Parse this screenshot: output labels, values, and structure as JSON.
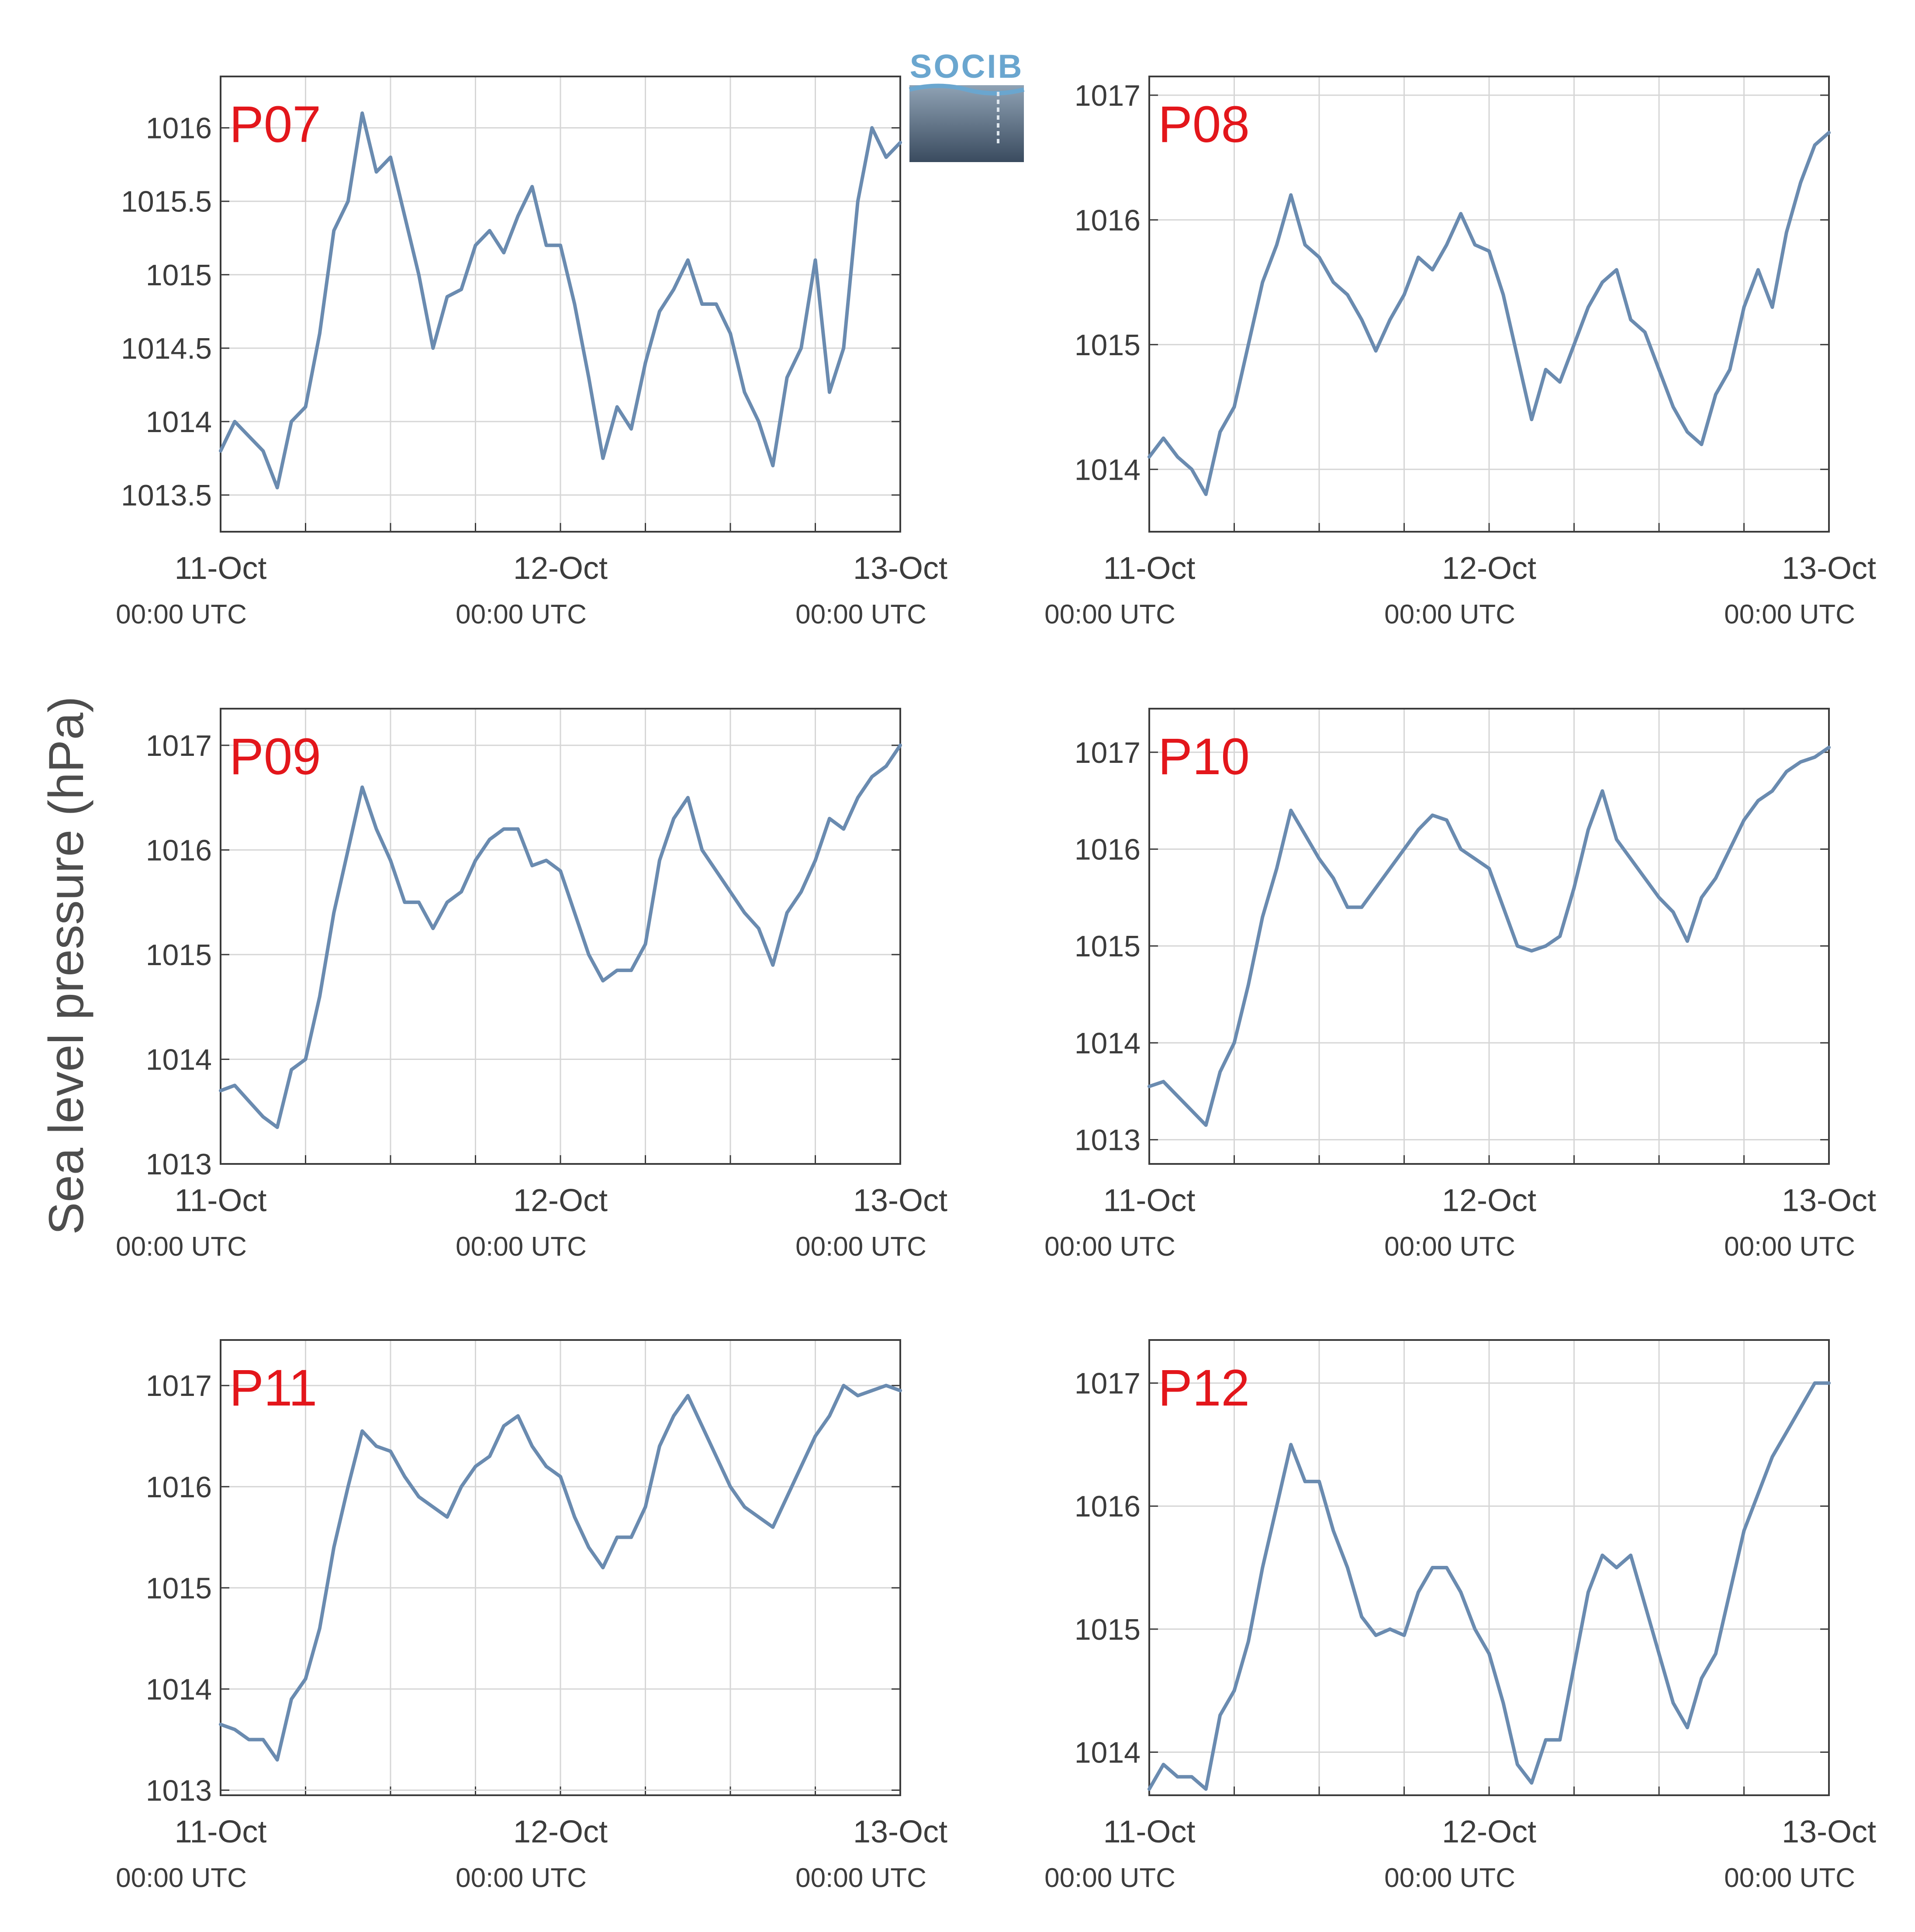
{
  "figure": {
    "ylabel": "Sea level pressure (hPa)",
    "logo_text": "SOCIB"
  },
  "colors": {
    "line": "#6a8bb0",
    "station_label": "#e3161b",
    "grid": "#d6d6d6",
    "axis": "#3c3c3c",
    "logo_text": "#6aa6cf"
  },
  "chart_data": [
    {
      "type": "line",
      "title": "P07",
      "ylabel": "Sea level pressure (hPa)",
      "xlim": [
        "2023-10-11 00:00",
        "2023-10-13 00:00"
      ],
      "ylim": [
        1013.25,
        1016.35
      ],
      "yticks": [
        "1013.5",
        "1014",
        "1014.5",
        "1015",
        "1015.5",
        "1016"
      ],
      "xticks": [
        {
          "date": "11-Oct",
          "time": "00:00 UTC"
        },
        {
          "date": "12-Oct",
          "time": "00:00 UTC"
        },
        {
          "date": "13-Oct",
          "time": "00:00 UTC"
        }
      ],
      "grid": true,
      "series": [
        {
          "x_hours": [
            0,
            1,
            2,
            3,
            4,
            5,
            6,
            7,
            8,
            9,
            10,
            11,
            12,
            13,
            14,
            15,
            16,
            17,
            18,
            19,
            20,
            21,
            22,
            23,
            24,
            25,
            26,
            27,
            28,
            29,
            30,
            31,
            32,
            33,
            34,
            35,
            36,
            37,
            38,
            39,
            40,
            41,
            42,
            43,
            44,
            45,
            46,
            47,
            48
          ],
          "values": [
            1013.8,
            1014.0,
            1013.9,
            1013.8,
            1013.55,
            1014.0,
            1014.1,
            1014.6,
            1015.3,
            1015.5,
            1016.1,
            1015.7,
            1015.8,
            1015.4,
            1015.0,
            1014.5,
            1014.85,
            1014.9,
            1015.2,
            1015.3,
            1015.15,
            1015.4,
            1015.6,
            1015.2,
            1015.2,
            1014.8,
            1014.3,
            1013.75,
            1014.1,
            1013.95,
            1014.4,
            1014.75,
            1014.9,
            1015.1,
            1014.8,
            1014.8,
            1014.6,
            1014.2,
            1014.0,
            1013.7,
            1014.3,
            1014.5,
            1015.1,
            1014.2,
            1014.5,
            1015.5,
            1016.0,
            1015.8,
            1015.9
          ]
        }
      ]
    },
    {
      "type": "line",
      "title": "P08",
      "ylabel": "Sea level pressure (hPa)",
      "xlim": [
        "2023-10-11 00:00",
        "2023-10-13 00:00"
      ],
      "ylim": [
        1013.5,
        1017.15
      ],
      "yticks": [
        "1014",
        "1015",
        "1016",
        "1017"
      ],
      "xticks": [
        {
          "date": "11-Oct",
          "time": "00:00 UTC"
        },
        {
          "date": "12-Oct",
          "time": "00:00 UTC"
        },
        {
          "date": "13-Oct",
          "time": "00:00 UTC"
        }
      ],
      "grid": true,
      "series": [
        {
          "x_hours": [
            0,
            1,
            2,
            3,
            4,
            5,
            6,
            7,
            8,
            9,
            10,
            11,
            12,
            13,
            14,
            15,
            16,
            17,
            18,
            19,
            20,
            21,
            22,
            23,
            24,
            25,
            26,
            27,
            28,
            29,
            30,
            31,
            32,
            33,
            34,
            35,
            36,
            37,
            38,
            39,
            40,
            41,
            42,
            43,
            44,
            45,
            46,
            47,
            48
          ],
          "values": [
            1014.1,
            1014.25,
            1014.1,
            1014.0,
            1013.8,
            1014.3,
            1014.5,
            1015.0,
            1015.5,
            1015.8,
            1016.2,
            1015.8,
            1015.7,
            1015.5,
            1015.4,
            1015.2,
            1014.95,
            1015.2,
            1015.4,
            1015.7,
            1015.6,
            1015.8,
            1016.05,
            1015.8,
            1015.75,
            1015.4,
            1014.9,
            1014.4,
            1014.8,
            1014.7,
            1015.0,
            1015.3,
            1015.5,
            1015.6,
            1015.2,
            1015.1,
            1014.8,
            1014.5,
            1014.3,
            1014.2,
            1014.6,
            1014.8,
            1015.3,
            1015.6,
            1015.3,
            1015.9,
            1016.3,
            1016.6,
            1016.7
          ]
        }
      ]
    },
    {
      "type": "line",
      "title": "P09",
      "ylabel": "Sea level pressure (hPa)",
      "xlim": [
        "2023-10-11 00:00",
        "2023-10-13 00:00"
      ],
      "ylim": [
        1013.0,
        1017.35
      ],
      "yticks": [
        "1013",
        "1014",
        "1015",
        "1016",
        "1017"
      ],
      "xticks": [
        {
          "date": "11-Oct",
          "time": "00:00 UTC"
        },
        {
          "date": "12-Oct",
          "time": "00:00 UTC"
        },
        {
          "date": "13-Oct",
          "time": "00:00 UTC"
        }
      ],
      "grid": true,
      "series": [
        {
          "x_hours": [
            0,
            1,
            2,
            3,
            4,
            5,
            6,
            7,
            8,
            9,
            10,
            11,
            12,
            13,
            14,
            15,
            16,
            17,
            18,
            19,
            20,
            21,
            22,
            23,
            24,
            25,
            26,
            27,
            28,
            29,
            30,
            31,
            32,
            33,
            34,
            35,
            36,
            37,
            38,
            39,
            40,
            41,
            42,
            43,
            44,
            45,
            46,
            47,
            48
          ],
          "values": [
            1013.7,
            1013.75,
            1013.6,
            1013.45,
            1013.35,
            1013.9,
            1014.0,
            1014.6,
            1015.4,
            1016.0,
            1016.6,
            1016.2,
            1015.9,
            1015.5,
            1015.5,
            1015.25,
            1015.5,
            1015.6,
            1015.9,
            1016.1,
            1016.2,
            1016.2,
            1015.85,
            1015.9,
            1015.8,
            1015.4,
            1015.0,
            1014.75,
            1014.85,
            1014.85,
            1015.1,
            1015.9,
            1016.3,
            1016.5,
            1016.0,
            1015.8,
            1015.6,
            1015.4,
            1015.25,
            1014.9,
            1015.4,
            1015.6,
            1015.9,
            1016.3,
            1016.2,
            1016.5,
            1016.7,
            1016.8,
            1017.0
          ]
        }
      ]
    },
    {
      "type": "line",
      "title": "P10",
      "ylabel": "Sea level pressure (hPa)",
      "xlim": [
        "2023-10-11 00:00",
        "2023-10-13 00:00"
      ],
      "ylim": [
        1012.75,
        1017.45
      ],
      "yticks": [
        "1013",
        "1014",
        "1015",
        "1016",
        "1017"
      ],
      "xticks": [
        {
          "date": "11-Oct",
          "time": "00:00 UTC"
        },
        {
          "date": "12-Oct",
          "time": "00:00 UTC"
        },
        {
          "date": "13-Oct",
          "time": "00:00 UTC"
        }
      ],
      "grid": true,
      "series": [
        {
          "x_hours": [
            0,
            1,
            2,
            3,
            4,
            5,
            6,
            7,
            8,
            9,
            10,
            11,
            12,
            13,
            14,
            15,
            16,
            17,
            18,
            19,
            20,
            21,
            22,
            23,
            24,
            25,
            26,
            27,
            28,
            29,
            30,
            31,
            32,
            33,
            34,
            35,
            36,
            37,
            38,
            39,
            40,
            41,
            42,
            43,
            44,
            45,
            46,
            47,
            48
          ],
          "values": [
            1013.55,
            1013.6,
            1013.45,
            1013.3,
            1013.15,
            1013.7,
            1014.0,
            1014.6,
            1015.3,
            1015.8,
            1016.4,
            1016.15,
            1015.9,
            1015.7,
            1015.4,
            1015.4,
            1015.6,
            1015.8,
            1016.0,
            1016.2,
            1016.35,
            1016.3,
            1016.0,
            1015.9,
            1015.8,
            1015.4,
            1015.0,
            1014.95,
            1015.0,
            1015.1,
            1015.6,
            1016.2,
            1016.6,
            1016.1,
            1015.9,
            1015.7,
            1015.5,
            1015.35,
            1015.05,
            1015.5,
            1015.7,
            1016.0,
            1016.3,
            1016.5,
            1016.6,
            1016.8,
            1016.9,
            1016.95,
            1017.05
          ]
        }
      ]
    },
    {
      "type": "line",
      "title": "P11",
      "ylabel": "Sea level pressure (hPa)",
      "xlim": [
        "2023-10-11 00:00",
        "2023-10-13 00:00"
      ],
      "ylim": [
        1012.95,
        1017.45
      ],
      "yticks": [
        "1013",
        "1014",
        "1015",
        "1016",
        "1017"
      ],
      "xticks": [
        {
          "date": "11-Oct",
          "time": "00:00 UTC"
        },
        {
          "date": "12-Oct",
          "time": "00:00 UTC"
        },
        {
          "date": "13-Oct",
          "time": "00:00 UTC"
        }
      ],
      "grid": true,
      "series": [
        {
          "x_hours": [
            0,
            1,
            2,
            3,
            4,
            5,
            6,
            7,
            8,
            9,
            10,
            11,
            12,
            13,
            14,
            15,
            16,
            17,
            18,
            19,
            20,
            21,
            22,
            23,
            24,
            25,
            26,
            27,
            28,
            29,
            30,
            31,
            32,
            33,
            34,
            35,
            36,
            37,
            38,
            39,
            40,
            41,
            42,
            43,
            44,
            45,
            46,
            47,
            48
          ],
          "values": [
            1013.65,
            1013.6,
            1013.5,
            1013.5,
            1013.3,
            1013.9,
            1014.1,
            1014.6,
            1015.4,
            1016.0,
            1016.55,
            1016.4,
            1016.35,
            1016.1,
            1015.9,
            1015.8,
            1015.7,
            1016.0,
            1016.2,
            1016.3,
            1016.6,
            1016.7,
            1016.4,
            1016.2,
            1016.1,
            1015.7,
            1015.4,
            1015.2,
            1015.5,
            1015.5,
            1015.8,
            1016.4,
            1016.7,
            1016.9,
            1016.6,
            1016.3,
            1016.0,
            1015.8,
            1015.7,
            1015.6,
            1015.9,
            1016.2,
            1016.5,
            1016.7,
            1017.0,
            1016.9,
            1016.95,
            1017.0,
            1016.95
          ]
        }
      ]
    },
    {
      "type": "line",
      "title": "P12",
      "ylabel": "Sea level pressure (hPa)",
      "xlim": [
        "2023-10-11 00:00",
        "2023-10-13 00:00"
      ],
      "ylim": [
        1013.65,
        1017.35
      ],
      "yticks": [
        "1014",
        "1015",
        "1016",
        "1017"
      ],
      "xticks": [
        {
          "date": "11-Oct",
          "time": "00:00 UTC"
        },
        {
          "date": "12-Oct",
          "time": "00:00 UTC"
        },
        {
          "date": "13-Oct",
          "time": "00:00 UTC"
        }
      ],
      "grid": true,
      "series": [
        {
          "x_hours": [
            0,
            1,
            2,
            3,
            4,
            5,
            6,
            7,
            8,
            9,
            10,
            11,
            12,
            13,
            14,
            15,
            16,
            17,
            18,
            19,
            20,
            21,
            22,
            23,
            24,
            25,
            26,
            27,
            28,
            29,
            30,
            31,
            32,
            33,
            34,
            35,
            36,
            37,
            38,
            39,
            40,
            41,
            42,
            43,
            44,
            45,
            46,
            47,
            48
          ],
          "values": [
            1013.7,
            1013.9,
            1013.8,
            1013.8,
            1013.7,
            1014.3,
            1014.5,
            1014.9,
            1015.5,
            1016.0,
            1016.5,
            1016.2,
            1016.2,
            1015.8,
            1015.5,
            1015.1,
            1014.95,
            1015.0,
            1014.95,
            1015.3,
            1015.5,
            1015.5,
            1015.3,
            1015.0,
            1014.8,
            1014.4,
            1013.9,
            1013.75,
            1014.1,
            1014.1,
            1014.7,
            1015.3,
            1015.6,
            1015.5,
            1015.6,
            1015.2,
            1014.8,
            1014.4,
            1014.2,
            1014.6,
            1014.8,
            1015.3,
            1015.8,
            1016.1,
            1016.4,
            1016.6,
            1016.8,
            1017.0,
            1017.0
          ]
        }
      ]
    }
  ]
}
